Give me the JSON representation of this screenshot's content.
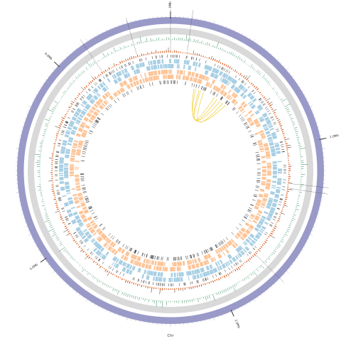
{
  "diagram": {
    "chromosome_name": "Chr",
    "position_labels": [
      "0Mb",
      "1.0Mb",
      "2.0Mb",
      "3.0Mb",
      "4.0Mb"
    ],
    "colors": {
      "ideogram": "#9a9ac9",
      "gc_band": "#d9d9d9",
      "gc_skew": "#2e8b57",
      "depth": "#d94801",
      "blue_track": "#9ecae1",
      "orange_track": "#fdbe8c",
      "dark_track": "#333333",
      "links": "#f3d24c",
      "marker_lines": "#444444"
    }
  }
}
